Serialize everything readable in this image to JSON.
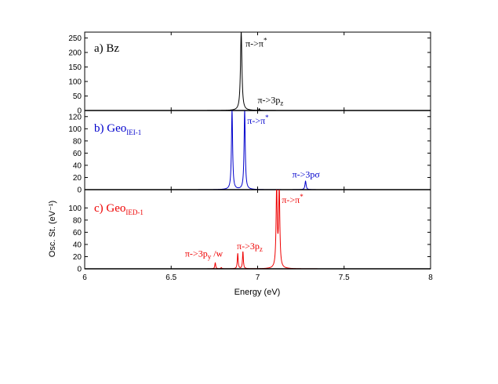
{
  "chart_data": {
    "type": "line",
    "xlabel": "Energy (eV)",
    "ylabel": "Osc. St. (eV⁻¹)",
    "xlim": [
      6,
      8
    ],
    "x_ticks": [
      6,
      6.5,
      7,
      7.5,
      8
    ],
    "x_tick_labels": [
      "6",
      "6.5",
      "7",
      "7.5",
      "8"
    ],
    "grid": false,
    "panels": [
      {
        "id": "bz",
        "label_main": "a) Bz",
        "label_sub": "",
        "color": "#000000",
        "ylim": [
          0,
          270
        ],
        "y_ticks": [
          0,
          50,
          100,
          150,
          200,
          250
        ],
        "y_tick_labels": [
          "0",
          "50",
          "100",
          "150",
          "200",
          "250"
        ],
        "peaks": [
          {
            "x": 6.905,
            "height": 270,
            "width": 0.005
          },
          {
            "x": 7.01,
            "height": 4,
            "width": 0.004
          }
        ],
        "annotations": [
          {
            "parts": [
              {
                "t": "π->π",
                "s": ""
              },
              {
                "t": "*",
                "s": "sup"
              }
            ],
            "x": 6.93,
            "y": 220
          },
          {
            "parts": [
              {
                "t": "π->3p",
                "s": ""
              },
              {
                "t": "z",
                "s": "sub"
              }
            ],
            "x": 7.0,
            "y": 25
          }
        ]
      },
      {
        "id": "geo-iei",
        "label_main": "b) Geo",
        "label_sub": "IEI-1",
        "color": "#0000cc",
        "ylim": [
          0,
          130
        ],
        "y_ticks": [
          0,
          20,
          40,
          60,
          80,
          100,
          120
        ],
        "y_tick_labels": [
          "0",
          "20",
          "40",
          "60",
          "80",
          "100",
          "120"
        ],
        "peaks": [
          {
            "x": 6.852,
            "height": 130,
            "width": 0.004
          },
          {
            "x": 6.925,
            "height": 130,
            "width": 0.004
          },
          {
            "x": 7.277,
            "height": 14,
            "width": 0.004
          }
        ],
        "annotations": [
          {
            "parts": [
              {
                "t": "π->π",
                "s": ""
              },
              {
                "t": "*",
                "s": "sup"
              }
            ],
            "x": 6.94,
            "y": 108
          },
          {
            "parts": [
              {
                "t": "π->3pσ",
                "s": ""
              }
            ],
            "x": 7.2,
            "y": 20
          }
        ]
      },
      {
        "id": "geo-ied",
        "label_main": "c) Geo",
        "label_sub": "IED-1",
        "color": "#ee0000",
        "ylim": [
          0,
          130
        ],
        "y_ticks": [
          0,
          20,
          40,
          60,
          80,
          100
        ],
        "y_tick_labels": [
          "0",
          "20",
          "40",
          "60",
          "80",
          "100"
        ],
        "peaks": [
          {
            "x": 6.755,
            "height": 10,
            "width": 0.003
          },
          {
            "x": 6.79,
            "height": 2,
            "width": 0.003
          },
          {
            "x": 6.885,
            "height": 25,
            "width": 0.003
          },
          {
            "x": 6.915,
            "height": 28,
            "width": 0.003
          },
          {
            "x": 7.11,
            "height": 130,
            "width": 0.004
          },
          {
            "x": 7.125,
            "height": 130,
            "width": 0.004
          }
        ],
        "annotations": [
          {
            "parts": [
              {
                "t": "π->3p",
                "s": ""
              },
              {
                "t": "y",
                "s": "sub"
              },
              {
                "t": " /w",
                "s": ""
              }
            ],
            "x": 6.58,
            "y": 20
          },
          {
            "parts": [
              {
                "t": "π->3p",
                "s": ""
              },
              {
                "t": "z",
                "s": "sub"
              }
            ],
            "x": 6.88,
            "y": 32
          },
          {
            "parts": [
              {
                "t": "π->π",
                "s": ""
              },
              {
                "t": "*",
                "s": "sup"
              }
            ],
            "x": 7.14,
            "y": 108
          }
        ]
      }
    ]
  }
}
